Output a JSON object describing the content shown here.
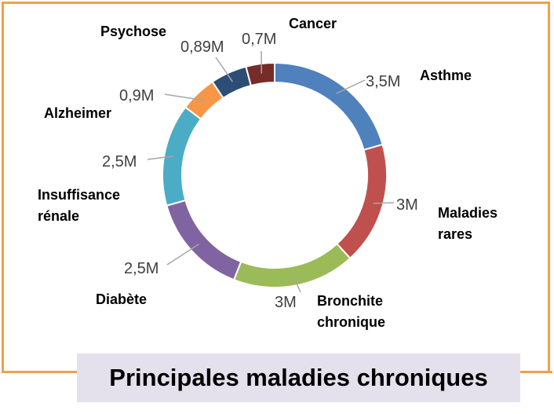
{
  "chart_data": {
    "type": "pie",
    "variant": "donut",
    "title": "Principales maladies chroniques",
    "categories": [
      "Asthme",
      "Maladies rares",
      "Bronchite chronique",
      "Diabète",
      "Insuffisance rénale",
      "Alzheimer",
      "Psychose",
      "Cancer"
    ],
    "values": [
      3.5,
      3,
      3,
      2.5,
      2.5,
      0.9,
      0.89,
      0.7
    ],
    "value_labels": [
      "3,5M",
      "3M",
      "3M",
      "2,5M",
      "2,5M",
      "0,9M",
      "0,89M",
      "0,7M"
    ],
    "label_lines": [
      [
        "Asthme"
      ],
      [
        "Maladies",
        "rares"
      ],
      [
        "Bronchite",
        "chronique"
      ],
      [
        "Diabète"
      ],
      [
        "Insuffisance",
        "rénale"
      ],
      [
        "Alzheimer"
      ],
      [
        "Psychose"
      ],
      [
        "Cancer"
      ]
    ],
    "colors": [
      "#4f81bd",
      "#c0504d",
      "#9bbb59",
      "#8064a2",
      "#4bacc6",
      "#f79646",
      "#2c4d75",
      "#772c2a"
    ],
    "legend": "none",
    "border_color": "#f0a04b",
    "title_background": "#e4e0ec"
  }
}
